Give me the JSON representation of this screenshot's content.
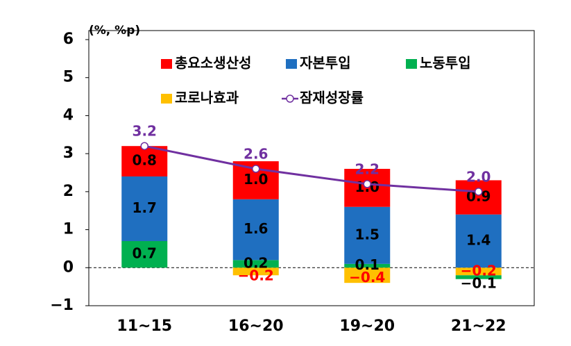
{
  "chart_data": {
    "type": "bar",
    "stacked": true,
    "y_label": "(%, %p)",
    "categories": [
      "11~15",
      "16~20",
      "19~20",
      "21~22"
    ],
    "series": [
      {
        "name": "총요소생산성",
        "color": "#ff0000",
        "label_color": "#000000",
        "values": [
          0.8,
          1.0,
          1.0,
          0.9
        ],
        "value_labels": [
          "0.8",
          "1.0",
          "1.0",
          "0.9"
        ]
      },
      {
        "name": "자본투입",
        "color": "#1f6fc0",
        "label_color": "#000000",
        "values": [
          1.7,
          1.6,
          1.5,
          1.4
        ],
        "value_labels": [
          "1.7",
          "1.6",
          "1.5",
          "1.4"
        ]
      },
      {
        "name": "노동투입",
        "color": "#00b050",
        "label_color": "#000000",
        "values": [
          0.7,
          0.2,
          0.1,
          -0.1
        ],
        "value_labels": [
          "0.7",
          "0.2",
          "0.1",
          "−0.1"
        ]
      },
      {
        "name": "코로나효과",
        "color": "#ffc000",
        "label_color": "#ff0000",
        "values": [
          null,
          -0.2,
          -0.4,
          -0.2
        ],
        "value_labels": [
          null,
          "−0.2",
          "−0.4",
          "−0.2"
        ]
      },
      {
        "name": "잠재성장률",
        "type": "line",
        "color": "#7030a0",
        "label_color": "#7030a0",
        "values": [
          3.2,
          2.6,
          2.2,
          2.0
        ],
        "value_labels": [
          "3.2",
          "2.6",
          "2.2",
          "2.0"
        ]
      }
    ],
    "ylim": [
      -1,
      6
    ],
    "yticks": [
      {
        "value": -1,
        "label": "−1"
      },
      0,
      1,
      2,
      3,
      4,
      5,
      6
    ],
    "zero_line": "dashed"
  }
}
